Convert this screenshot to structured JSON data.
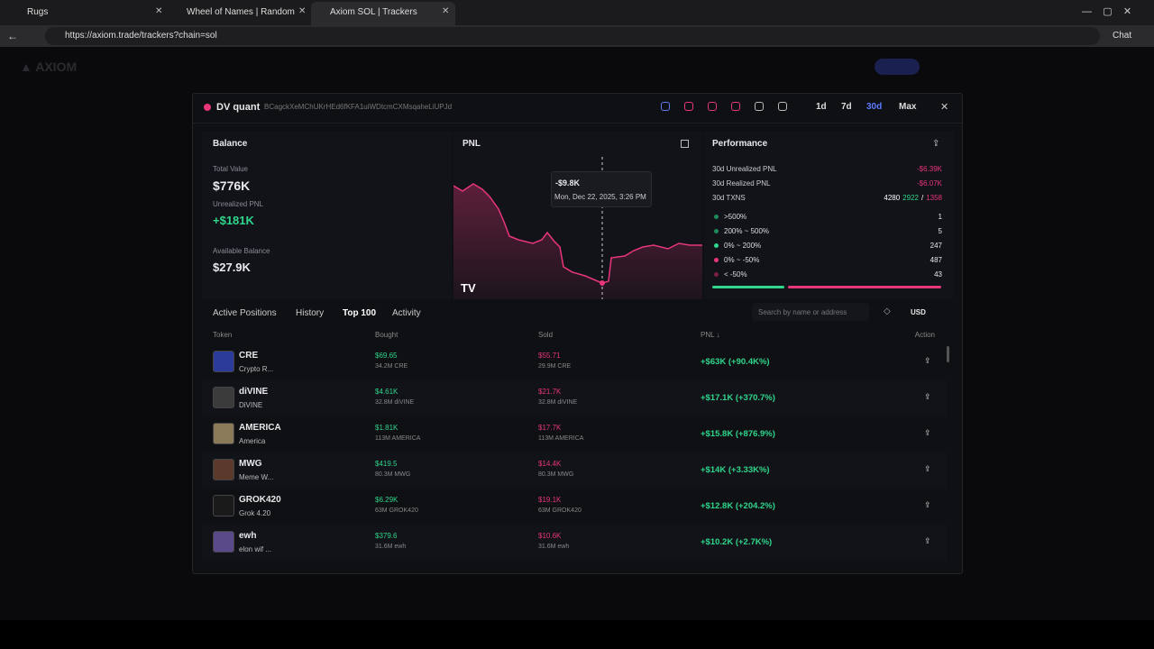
{
  "browser": {
    "tabs": [
      "Rugs",
      "Wheel of Names | Random name ...",
      "Axiom SOL | Trackers"
    ],
    "url": "https://axiom.trade/trackers?chain=sol",
    "chat": "Chat"
  },
  "modal": {
    "wallet_name": "DV quant",
    "address": "BCagckXeMChUKrHEd6fKFA1uiWDtcmCXMsqaheLiUPJd",
    "timeframes": [
      "1d",
      "7d",
      "30d",
      "Max"
    ],
    "active_timeframe": "30d",
    "balance": {
      "title": "Balance",
      "total_value_label": "Total Value",
      "total_value": "$776K",
      "unrealized_pnl_label": "Unrealized PNL",
      "unrealized_pnl": "+$181K",
      "available_balance_label": "Available Balance",
      "available_balance": "$27.9K"
    },
    "pnl": {
      "title": "PNL",
      "tooltip_value": "-$9.8K",
      "tooltip_date": "Mon, Dec 22, 2025, 3:26 PM"
    },
    "performance": {
      "title": "Performance",
      "stats": [
        {
          "label": "30d Unrealized PNL",
          "value": "-$6.39K"
        },
        {
          "label": "30d Realized PNL",
          "value": "-$6.07K"
        }
      ],
      "txns": {
        "label": "30d TXNS",
        "total": 4280,
        "buys": 2922,
        "separator": "/",
        "sells": 1358
      },
      "distribution": [
        {
          "label": ">500%",
          "count": 1,
          "color": "#1f8a5c"
        },
        {
          "label": "200% ~ 500%",
          "count": 5,
          "color": "#1f8a5c"
        },
        {
          "label": "0% ~ 200%",
          "count": 247,
          "color": "#2fd68c"
        },
        {
          "label": "0% ~ -50%",
          "count": 487,
          "color": "#e8367a"
        },
        {
          "label": "< -50%",
          "count": 43,
          "color": "#7a1f45"
        }
      ]
    },
    "tabs": {
      "items": [
        "Active Positions",
        "History",
        "Top 100",
        "Activity"
      ],
      "active": "Top 100",
      "search_placeholder": "Search by name or address",
      "currency": "USD"
    },
    "table": {
      "headers": [
        "Token",
        "Bought",
        "Sold",
        "PNL ↓",
        "Action"
      ],
      "rows": [
        {
          "symbol": "CRE",
          "name": "Crypto R...",
          "bought": "$69.65",
          "bought_amount": "34.2M CRE",
          "sold": "$55.71",
          "sold_amount": "29.9M CRE",
          "pnl": "+$63K (+90.4K%)"
        },
        {
          "symbol": "diVINE",
          "name": "DiVINE",
          "bought": "$4.61K",
          "bought_amount": "32.8M diVINE",
          "sold": "$21.7K",
          "sold_amount": "32.8M diVINE",
          "pnl": "+$17.1K (+370.7%)"
        },
        {
          "symbol": "AMERICA",
          "name": "America",
          "bought": "$1.81K",
          "bought_amount": "113M AMERICA",
          "sold": "$17.7K",
          "sold_amount": "113M AMERICA",
          "pnl": "+$15.8K (+876.9%)"
        },
        {
          "symbol": "MWG",
          "name": "Meme W...",
          "bought": "$419.5",
          "bought_amount": "80.3M MWG",
          "sold": "$14.4K",
          "sold_amount": "80.3M MWG",
          "pnl": "+$14K (+3.33K%)"
        },
        {
          "symbol": "GROK420",
          "name": "Grok 4.20",
          "bought": "$6.29K",
          "bought_amount": "63M GROK420",
          "sold": "$19.1K",
          "sold_amount": "63M GROK420",
          "pnl": "+$12.8K (+204.2%)"
        },
        {
          "symbol": "ewh",
          "name": "elon wif ...",
          "bought": "$379.6",
          "bought_amount": "31.6M ewh",
          "sold": "$10.6K",
          "sold_amount": "31.6M ewh",
          "pnl": "+$10.2K (+2.7K%)"
        }
      ]
    }
  }
}
